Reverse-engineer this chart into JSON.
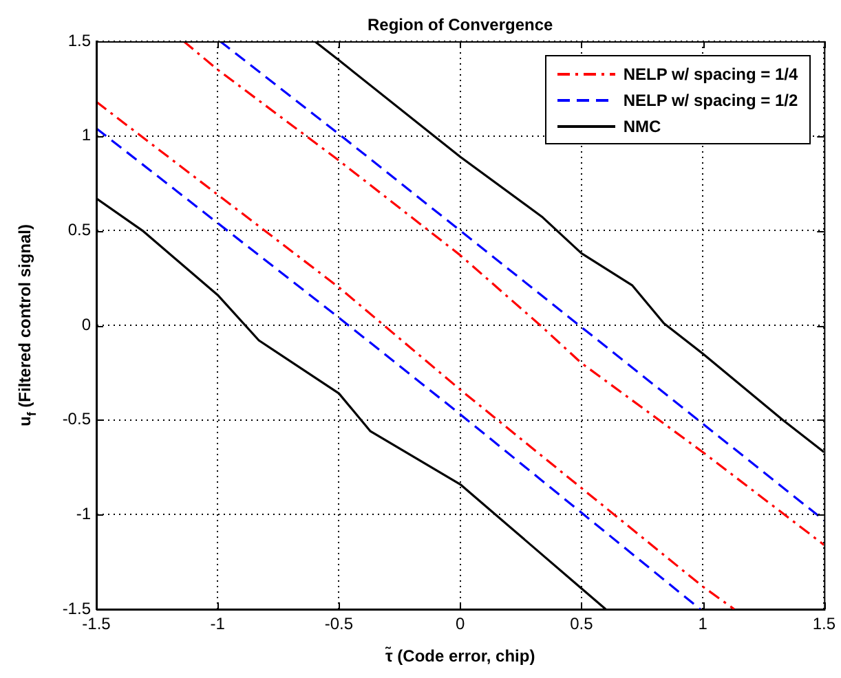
{
  "chart_data": {
    "type": "line",
    "title": "Region of Convergence",
    "xlabel": "τ̃ (Code error, chip)",
    "ylabel": "u$_{f}$ (Filtered control signal)",
    "xlim": [
      -1.5,
      1.5
    ],
    "xticks": [
      -1.5,
      -1,
      -0.5,
      0,
      0.5,
      1,
      1.5
    ],
    "ylim": [
      -1.5,
      1.5
    ],
    "yticks": [
      -1.5,
      -1,
      -0.5,
      0,
      0.5,
      1,
      1.5
    ],
    "grid": true,
    "legend": "top right",
    "marker": "none",
    "series": [
      {
        "name": "NELP w/ spacing = 1/4",
        "color": "#ff0000",
        "line_style": "dashdot",
        "x": [
          -1.14,
          -1,
          -0.5,
          0,
          0.33,
          0.5,
          1,
          1.5
        ],
        "values": [
          1.5,
          1.35,
          0.87,
          0.37,
          0,
          -0.2,
          -0.67,
          -1.16
        ]
      },
      {
        "color": "#ff0000",
        "line_style": "dashdot",
        "x": [
          -1.5,
          -1,
          -0.5,
          0,
          0.5,
          1,
          1.13
        ],
        "values": [
          1.18,
          0.69,
          0.2,
          -0.34,
          -0.86,
          -1.38,
          -1.5
        ]
      },
      {
        "name": "NELP w/ spacing = 1/2",
        "color": "#0000ff",
        "line_style": "dashed",
        "x": [
          -0.99,
          -0.5,
          0,
          0.5,
          1,
          1.5
        ],
        "values": [
          1.5,
          1.01,
          0.5,
          -0.01,
          -0.52,
          -1.03
        ]
      },
      {
        "color": "#0000ff",
        "line_style": "dashed",
        "x": [
          -1.5,
          -1,
          -0.5,
          0,
          0.5,
          0.99
        ],
        "values": [
          1.04,
          0.54,
          0.04,
          -0.47,
          -0.99,
          -1.5
        ]
      },
      {
        "name": "NMC",
        "color": "#000000",
        "line_style": "solid",
        "x": [
          -0.6,
          -0.5,
          0,
          0.34,
          0.5,
          0.71,
          0.84,
          1,
          1.33,
          1.5
        ],
        "values": [
          1.5,
          1.4,
          0.89,
          0.57,
          0.38,
          0.21,
          0.01,
          -0.15,
          -0.5,
          -0.67
        ]
      },
      {
        "color": "#000000",
        "line_style": "solid",
        "x": [
          -1.5,
          -1.31,
          -1,
          -0.83,
          -0.5,
          -0.37,
          0,
          0.5,
          0.6
        ],
        "values": [
          0.67,
          0.5,
          0.16,
          -0.08,
          -0.36,
          -0.56,
          -0.84,
          -1.39,
          -1.5
        ]
      }
    ]
  }
}
